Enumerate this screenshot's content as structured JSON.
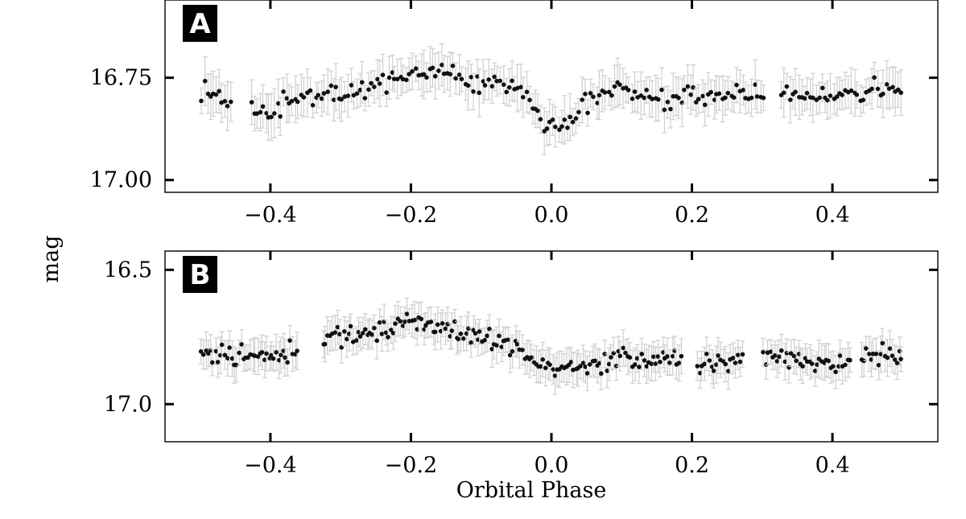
{
  "chart_data": [
    {
      "type": "scatter",
      "panel_label": "A",
      "xlim": [
        -0.55,
        0.55
      ],
      "ylim": [
        17.03,
        16.56
      ],
      "y_inverted": true,
      "xticks": [
        -0.4,
        -0.2,
        0.0,
        0.2,
        0.4
      ],
      "xtick_labels": [
        "−0.4",
        "−0.2",
        "0.0",
        "0.2",
        "0.4"
      ],
      "yticks": [
        16.75,
        17.0
      ],
      "ytick_labels": [
        "16.75",
        "17.00"
      ],
      "grid": false,
      "marker_color": "#111111",
      "errorbar_color": "#cfcfcf",
      "trend_knots": {
        "x": [
          -0.5,
          -0.42,
          -0.35,
          -0.28,
          -0.2,
          -0.15,
          -0.1,
          -0.05,
          -0.02,
          0.0,
          0.03,
          0.06,
          0.09,
          0.13,
          0.2,
          0.3,
          0.4,
          0.5
        ],
        "y": [
          16.78,
          16.84,
          16.8,
          16.78,
          16.74,
          16.74,
          16.76,
          16.77,
          16.83,
          16.88,
          16.85,
          16.8,
          16.77,
          16.8,
          16.8,
          16.79,
          16.8,
          16.77
        ]
      },
      "gaps": [
        [
          -0.455,
          -0.43
        ],
        [
          0.305,
          0.325
        ]
      ],
      "n_points": 240,
      "scatter": 0.025,
      "err_range": [
        0.03,
        0.06
      ],
      "seed": 7
    },
    {
      "type": "scatter",
      "panel_label": "B",
      "xlim": [
        -0.55,
        0.55
      ],
      "ylim": [
        17.14,
        16.43
      ],
      "y_inverted": true,
      "xticks": [
        -0.4,
        -0.2,
        0.0,
        0.2,
        0.4
      ],
      "xtick_labels": [
        "−0.4",
        "−0.2",
        "0.0",
        "0.2",
        "0.4"
      ],
      "yticks": [
        16.5,
        17.0
      ],
      "ytick_labels": [
        "16.5",
        "17.0"
      ],
      "grid": false,
      "marker_color": "#111111",
      "errorbar_color": "#cfcfcf",
      "trend_knots": {
        "x": [
          -0.5,
          -0.4,
          -0.3,
          -0.2,
          -0.15,
          -0.1,
          -0.05,
          0.0,
          0.05,
          0.1,
          0.15,
          0.2,
          0.3,
          0.4,
          0.5
        ],
        "y": [
          16.81,
          16.83,
          16.75,
          16.7,
          16.72,
          16.76,
          16.79,
          16.86,
          16.87,
          16.82,
          16.84,
          16.85,
          16.83,
          16.85,
          16.8
        ]
      },
      "gaps": [
        [
          -0.36,
          -0.325
        ],
        [
          0.185,
          0.205
        ],
        [
          0.275,
          0.3
        ],
        [
          0.425,
          0.44
        ]
      ],
      "n_points": 300,
      "scatter": 0.035,
      "err_range": [
        0.045,
        0.07
      ],
      "seed": 13
    }
  ],
  "shared": {
    "xlabel": "Orbital Phase",
    "ylabel": "mag"
  }
}
